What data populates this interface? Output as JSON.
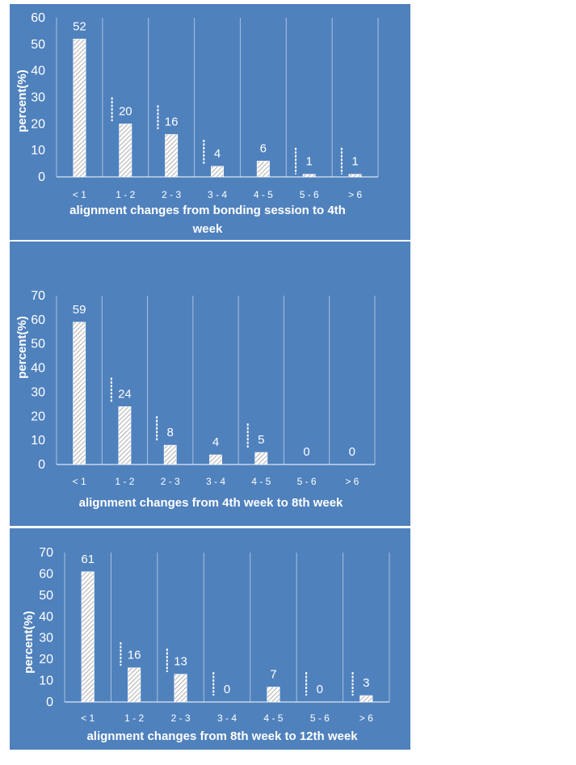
{
  "colors": {
    "panel_bg": "#4f81bd",
    "gridline": "#a9c1df",
    "axis": "#ffffff",
    "text": "#ffffff",
    "bar_hatch": "#ffffff"
  },
  "chart_data": [
    {
      "type": "bar",
      "categories": [
        "< 1",
        "1 - 2",
        "2 - 3",
        "3 - 4",
        "4 - 5",
        "5 - 6",
        "> 6"
      ],
      "values": [
        52,
        20,
        16,
        4,
        6,
        1,
        1
      ],
      "data_labels": [
        "52",
        "20",
        "16",
        "4",
        "6",
        "1",
        "1"
      ],
      "ylim": [
        0,
        60
      ],
      "yticks": [
        0,
        10,
        20,
        30,
        40,
        50,
        60
      ],
      "ytick_labels": [
        "0",
        "10",
        "20",
        "30",
        "40",
        "50",
        "60"
      ],
      "ylabel": "percent(%)",
      "xlabel_lines": [
        "alignment changes from bonding session to 4th",
        "week"
      ],
      "error_bars": [
        null,
        [
          21,
          30
        ],
        [
          18,
          27
        ],
        [
          5,
          14
        ],
        null,
        [
          1,
          11
        ],
        [
          1,
          11
        ]
      ],
      "grid": "vertical",
      "legend": "none"
    },
    {
      "type": "bar",
      "categories": [
        "< 1",
        "1 - 2",
        "2 - 3",
        "3 - 4",
        "4 - 5",
        "5 - 6",
        "> 6"
      ],
      "values": [
        59,
        24,
        8,
        4,
        5,
        0,
        0
      ],
      "data_labels": [
        "59",
        "24",
        "8",
        "4",
        "5",
        "0",
        "0"
      ],
      "ylim": [
        0,
        70
      ],
      "yticks": [
        0,
        10,
        20,
        30,
        40,
        50,
        60,
        70
      ],
      "ytick_labels": [
        "0",
        "10",
        "20",
        "30",
        "40",
        "50",
        "60",
        "70"
      ],
      "ylabel": "percent(%)",
      "xlabel_lines": [
        "alignment changes from 4th week to 8th week"
      ],
      "error_bars": [
        null,
        [
          26,
          36
        ],
        [
          10,
          20
        ],
        null,
        [
          7,
          17
        ],
        null,
        null
      ],
      "grid": "vertical",
      "legend": "none"
    },
    {
      "type": "bar",
      "categories": [
        "< 1",
        "1 - 2",
        "2 - 3",
        "3 - 4",
        "4 - 5",
        "5 - 6",
        "> 6"
      ],
      "values": [
        61,
        16,
        13,
        0,
        7,
        0,
        3
      ],
      "data_labels": [
        "61",
        "16",
        "13",
        "0",
        "7",
        "0",
        "3"
      ],
      "ylim": [
        0,
        70
      ],
      "yticks": [
        0,
        10,
        20,
        30,
        40,
        50,
        60,
        70
      ],
      "ytick_labels": [
        "0",
        "10",
        "20",
        "30",
        "40",
        "50",
        "60",
        "70"
      ],
      "ylabel": "percent(%)",
      "xlabel_lines": [
        "alignment changes from 8th week to 12th week"
      ],
      "error_bars": [
        null,
        [
          17,
          28
        ],
        [
          14,
          25
        ],
        [
          3,
          14
        ],
        null,
        [
          3,
          14
        ],
        [
          3,
          14
        ]
      ],
      "grid": "vertical",
      "legend": "none"
    }
  ]
}
